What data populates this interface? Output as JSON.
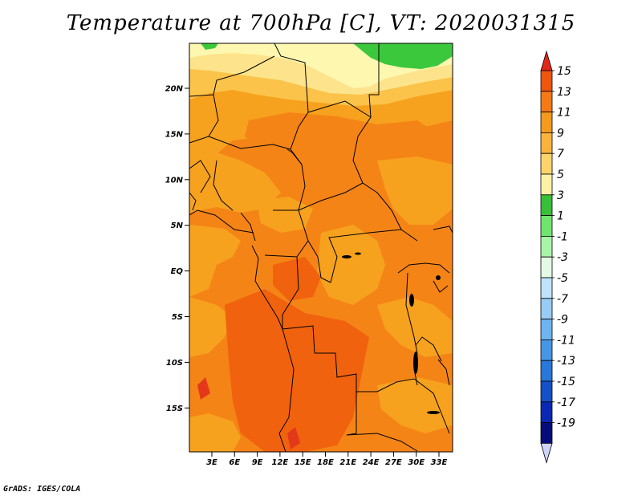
{
  "title": "Temperature at 700hPa [C], VT: 2020031315",
  "credit": "GrADS: IGES/COLA",
  "colors": {
    "green": "#3cc83c",
    "pale_yellow": "#fdf7b0",
    "light_yellow": "#fde48c",
    "yellow_orange": "#fbc34a",
    "orange": "#f6a21e",
    "dark_orange": "#f58416",
    "red_orange": "#f0620e",
    "red": "#e4381a"
  },
  "map": {
    "lat_ticks": [
      "20N",
      "15N",
      "10N",
      "5N",
      "EQ",
      "5S",
      "10S",
      "15S"
    ],
    "lon_ticks": [
      "3E",
      "6E",
      "9E",
      "12E",
      "15E",
      "18E",
      "21E",
      "24E",
      "27E",
      "30E",
      "33E"
    ]
  },
  "colorbar": {
    "labels": [
      "15",
      "13",
      "11",
      "9",
      "7",
      "5",
      "3",
      "1",
      "-1",
      "-3",
      "-5",
      "-7",
      "-9",
      "-11",
      "-13",
      "-15",
      "-17",
      "-19"
    ],
    "colors": [
      "#e1261a",
      "#f0550e",
      "#f57a14",
      "#f59a1c",
      "#fab43c",
      "#fdd46a",
      "#fdf2a6",
      "#38c038",
      "#6ee66e",
      "#a8f5a8",
      "#e4fae4",
      "#bee4fa",
      "#96ccf5",
      "#6eb4f0",
      "#4696e6",
      "#2878dc",
      "#1450c8",
      "#0a28b4",
      "#080c7a",
      "#d0d4fa"
    ]
  }
}
